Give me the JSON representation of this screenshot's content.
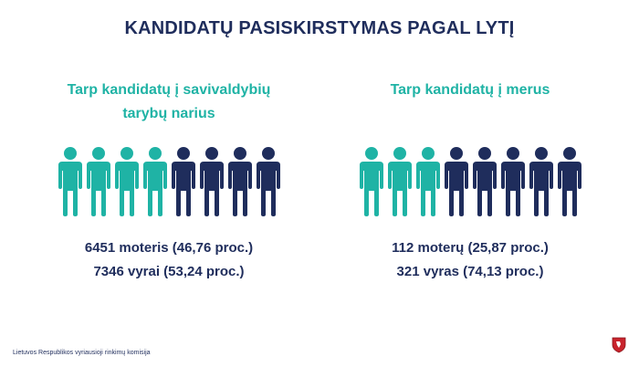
{
  "title": "KANDIDATŲ PASISKIRSTYMAS PAGAL LYTĮ",
  "colors": {
    "women": "#1fb3a5",
    "men": "#1f2d5c",
    "title": "#1f2d5c"
  },
  "panels": [
    {
      "subtitle_line1": "Tarp kandidatų į savivaldybių",
      "subtitle_line2": "tarybų narius",
      "women_icons": 4,
      "men_icons": 4,
      "women_text": "6451 moteris (46,76 proc.)",
      "men_text": "7346 vyrai (53,24 proc.)"
    },
    {
      "subtitle_line1": "Tarp kandidatų į merus",
      "subtitle_line2": "",
      "women_icons": 3,
      "men_icons": 5,
      "women_text": "112 moterų (25,87 proc.)",
      "men_text": "321 vyras (74,13 proc.)"
    }
  ],
  "footer": "Lietuvos Respublikos vyriausioji rinkimų komisija",
  "emblem_icon": "coat-of-arms-icon"
}
